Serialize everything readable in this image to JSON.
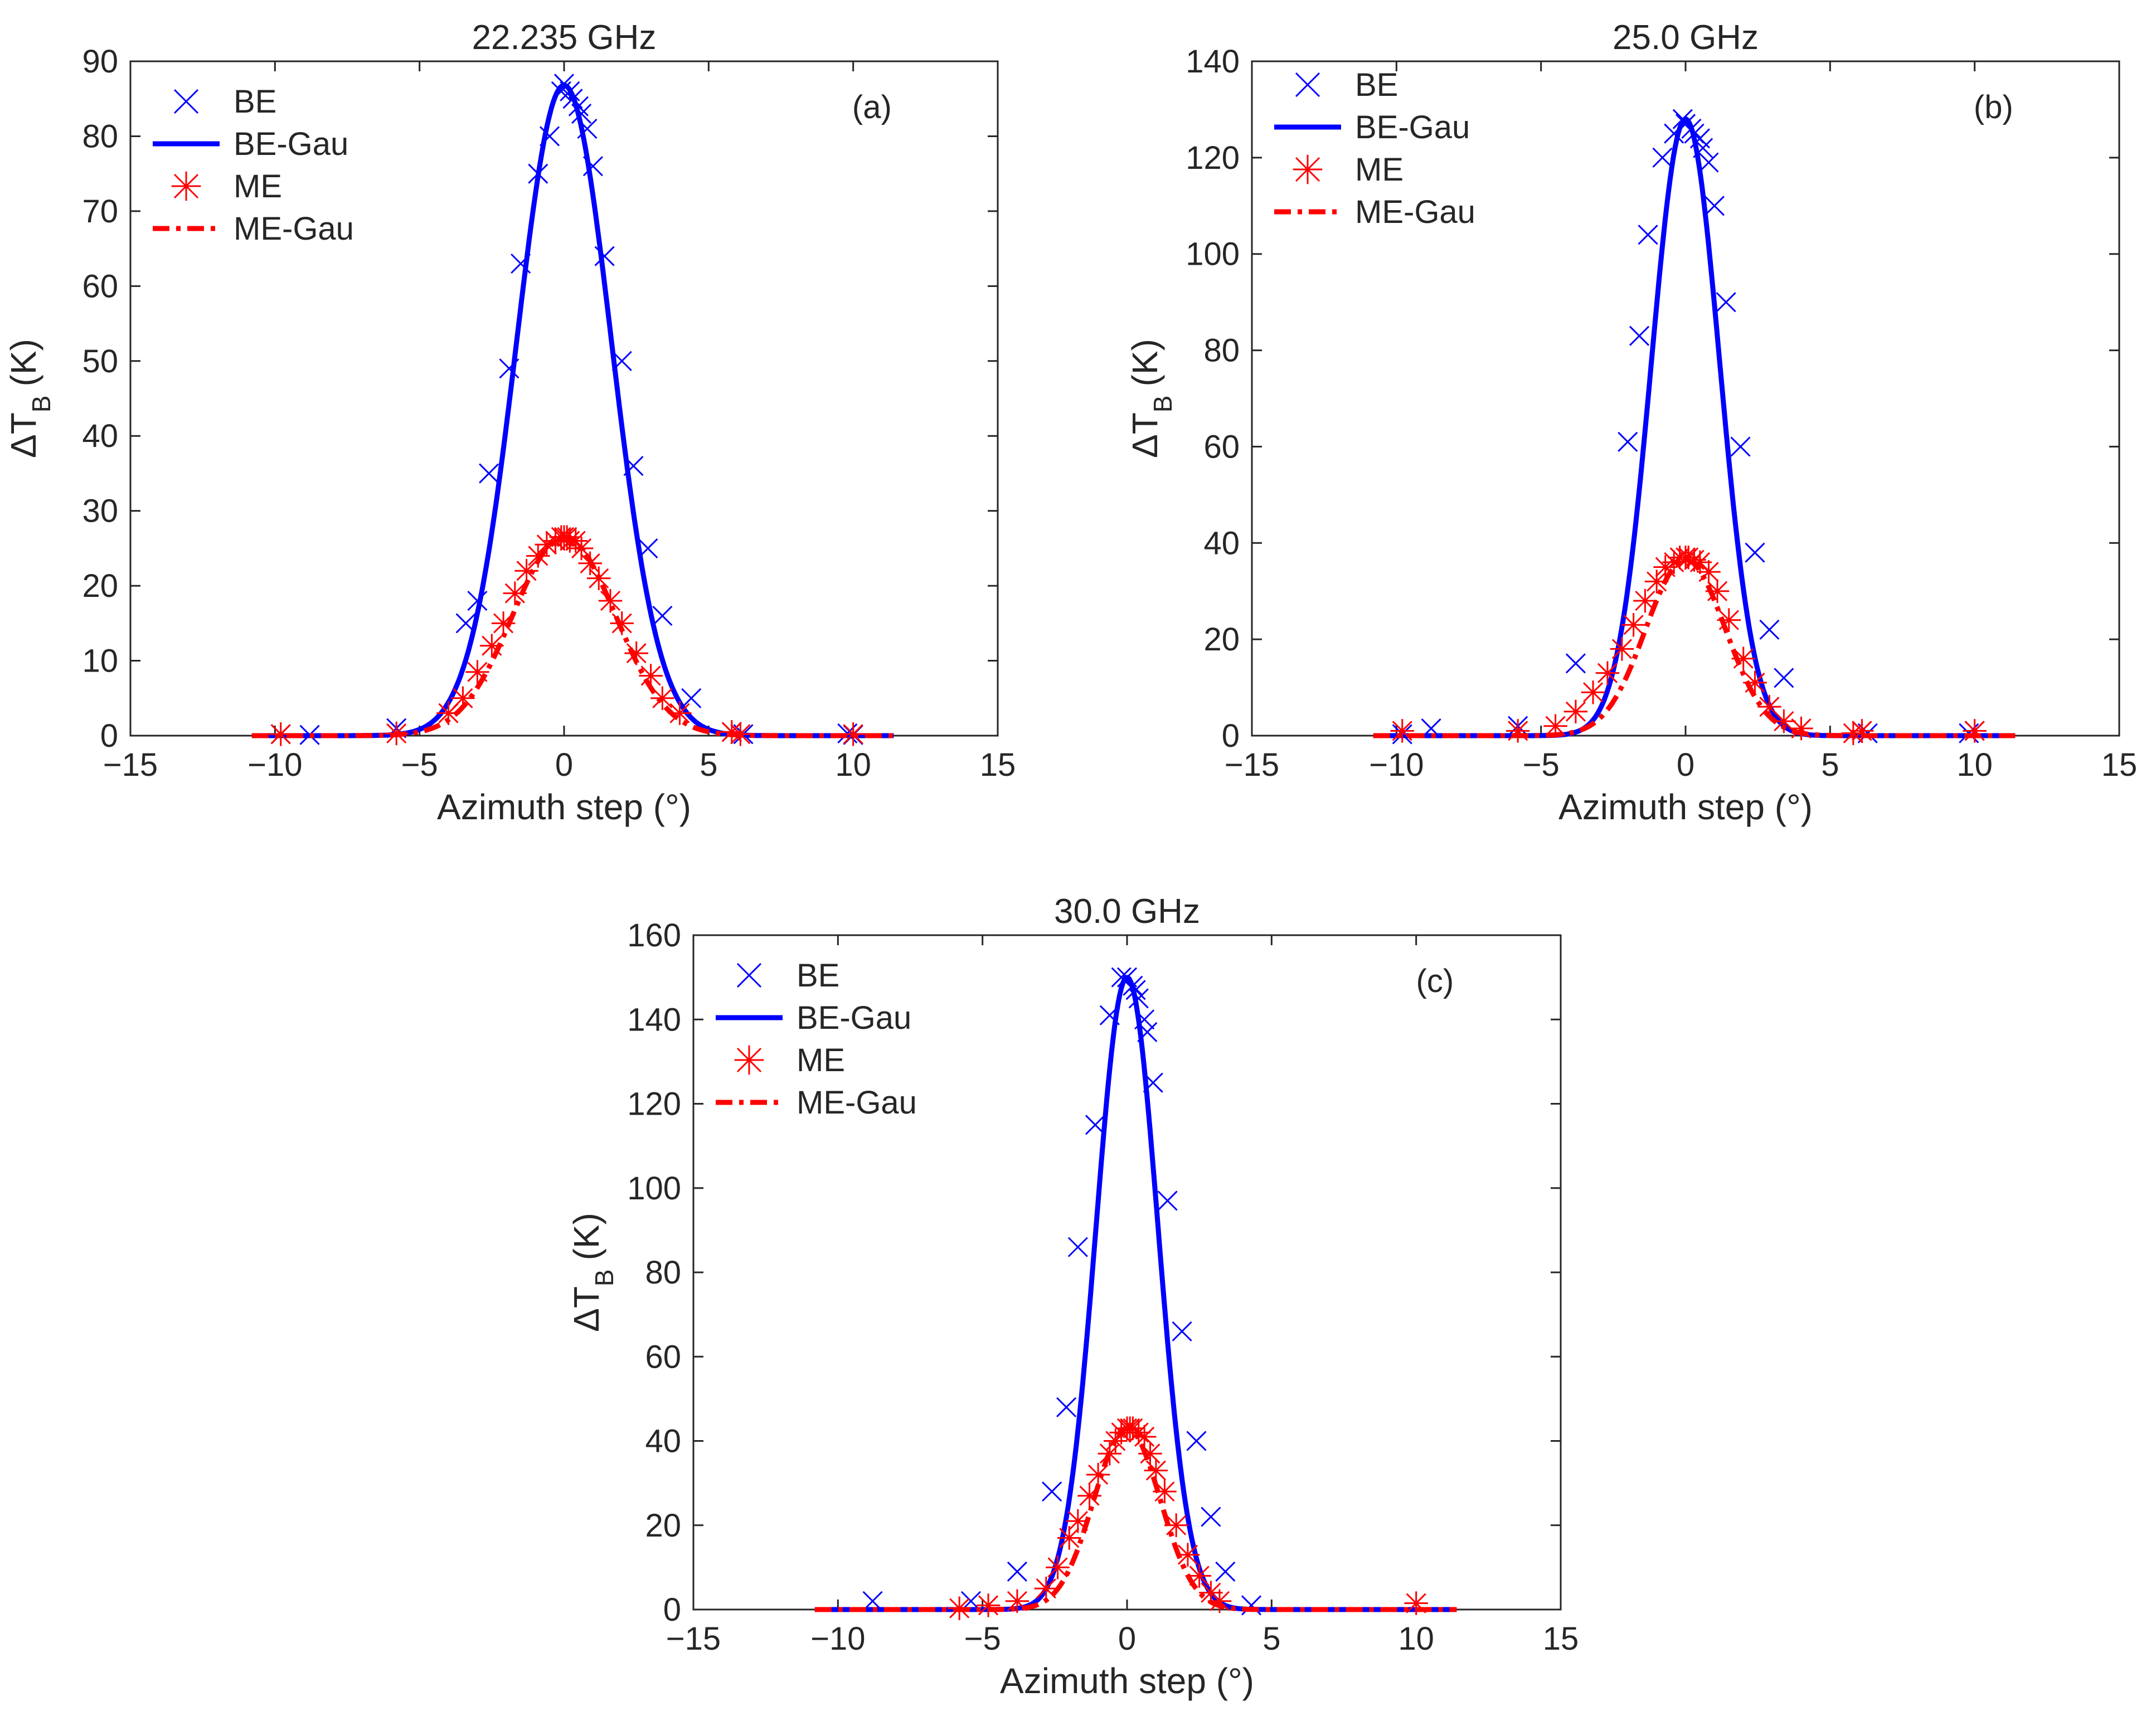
{
  "chart_data": [
    {
      "type": "line",
      "title": "22.235 GHz",
      "panel_label": "(a)",
      "xlabel": "Azimuth step (°)",
      "ylabel_main": "ΔT",
      "ylabel_sub": "B",
      "ylabel_unit": "(K)",
      "xlim": [
        -15,
        15
      ],
      "ylim": [
        0,
        90
      ],
      "xticks": [
        -15,
        -10,
        -5,
        0,
        5,
        10,
        15
      ],
      "yticks": [
        0,
        10,
        20,
        30,
        40,
        50,
        60,
        70,
        80,
        90
      ],
      "xtick_labels": [
        "−15",
        "−10",
        "−5",
        "0",
        "5",
        "10",
        "15"
      ],
      "ytick_labels": [
        "0",
        "10",
        "20",
        "30",
        "40",
        "50",
        "60",
        "70",
        "80",
        "90"
      ],
      "legend_position": "top-left",
      "series": [
        {
          "name": "BE",
          "kind": "marker-x",
          "color": "#0000ff",
          "x": [
            -9.8,
            -8.8,
            -5.8,
            -3.4,
            -3.0,
            -2.6,
            -1.9,
            -1.5,
            -0.9,
            -0.5,
            -0.1,
            0.0,
            0.2,
            0.3,
            0.5,
            0.6,
            0.8,
            1.0,
            1.4,
            2.0,
            2.4,
            2.9,
            3.4,
            4.4,
            5.8,
            6.2,
            9.8,
            10.0
          ],
          "y": [
            0.2,
            0.1,
            1.0,
            15,
            18,
            35,
            49,
            63,
            75,
            80,
            86,
            87,
            86,
            85,
            84,
            83,
            81,
            76,
            64,
            50,
            36,
            25,
            16,
            5,
            0.5,
            0.2,
            0.3,
            0.1
          ]
        },
        {
          "name": "BE-Gau",
          "kind": "line-solid",
          "color": "#0000ff",
          "amp": 86.8,
          "mu": 0.0,
          "sigma": 1.64,
          "range": [
            -10.8,
            11.4
          ]
        },
        {
          "name": "ME",
          "kind": "marker-star",
          "color": "#ff0000",
          "x": [
            -9.8,
            -5.8,
            -4.0,
            -3.5,
            -3.0,
            -2.5,
            -2.1,
            -1.7,
            -1.3,
            -0.9,
            -0.6,
            -0.3,
            -0.1,
            0.0,
            0.1,
            0.2,
            0.4,
            0.6,
            0.9,
            1.2,
            1.6,
            2.0,
            2.5,
            3.0,
            3.4,
            4.0,
            5.8,
            6.1,
            10.0
          ],
          "y": [
            0.2,
            0.3,
            3,
            5,
            8.5,
            12,
            15,
            19,
            22,
            24,
            25.5,
            26,
            26.5,
            26.5,
            26.5,
            26,
            26,
            25,
            23,
            21,
            18,
            15,
            11,
            8,
            5,
            3,
            0.5,
            0.2,
            0.2
          ]
        },
        {
          "name": "ME-Gau",
          "kind": "line-dashdot",
          "color": "#ff0000",
          "amp": 26.5,
          "mu": 0.0,
          "sigma": 1.78,
          "range": [
            -10.8,
            11.4
          ]
        }
      ]
    },
    {
      "type": "line",
      "title": "25.0 GHz",
      "panel_label": "(b)",
      "xlabel": "Azimuth step (°)",
      "ylabel_main": "ΔT",
      "ylabel_sub": "B",
      "ylabel_unit": "(K)",
      "xlim": [
        -15,
        15
      ],
      "ylim": [
        0,
        140
      ],
      "xticks": [
        -15,
        -10,
        -5,
        0,
        5,
        10,
        15
      ],
      "yticks": [
        0,
        20,
        40,
        60,
        80,
        100,
        120,
        140
      ],
      "xtick_labels": [
        "−15",
        "−10",
        "−5",
        "0",
        "5",
        "10",
        "15"
      ],
      "ytick_labels": [
        "0",
        "20",
        "40",
        "60",
        "80",
        "100",
        "120",
        "140"
      ],
      "legend_position": "top-left",
      "series": [
        {
          "name": "BE",
          "kind": "marker-x",
          "color": "#0000ff",
          "x": [
            -9.8,
            -8.8,
            -5.8,
            -3.8,
            -2.0,
            -1.6,
            -1.3,
            -0.8,
            -0.4,
            -0.1,
            0.0,
            0.2,
            0.3,
            0.5,
            0.6,
            0.8,
            1.0,
            1.4,
            1.9,
            2.4,
            2.9,
            3.4,
            6.1,
            6.3,
            9.8,
            10.0
          ],
          "y": [
            0.3,
            1.5,
            2,
            15,
            61,
            83,
            104,
            120,
            125,
            128,
            127,
            126,
            125,
            124,
            122,
            119,
            110,
            90,
            60,
            38,
            22,
            12,
            1,
            0.5,
            0.5,
            1
          ]
        },
        {
          "name": "BE-Gau",
          "kind": "line-solid",
          "color": "#0000ff",
          "amp": 128,
          "mu": 0.0,
          "sigma": 1.18,
          "range": [
            -10.8,
            11.4
          ]
        },
        {
          "name": "ME",
          "kind": "marker-star",
          "color": "#ff0000",
          "x": [
            -9.8,
            -5.8,
            -4.5,
            -3.8,
            -3.2,
            -2.7,
            -2.2,
            -1.8,
            -1.4,
            -1.0,
            -0.7,
            -0.4,
            -0.2,
            0.0,
            0.1,
            0.3,
            0.5,
            0.8,
            1.1,
            1.5,
            2.0,
            2.4,
            2.9,
            3.4,
            4.0,
            5.8,
            6.1,
            10.0
          ],
          "y": [
            1,
            1,
            2,
            5,
            9,
            13,
            18,
            23,
            28,
            32,
            35,
            36,
            37,
            37,
            37,
            36.5,
            36,
            34,
            30,
            24,
            16,
            11,
            6,
            3,
            1.5,
            0.5,
            1,
            1
          ]
        },
        {
          "name": "ME-Gau",
          "kind": "line-dashdot",
          "color": "#ff0000",
          "amp": 36.5,
          "mu": 0.0,
          "sigma": 1.38,
          "range": [
            -10.8,
            11.4
          ]
        }
      ]
    },
    {
      "type": "line",
      "title": "30.0 GHz",
      "panel_label": "(c)",
      "xlabel": "Azimuth step (°)",
      "ylabel_main": "ΔT",
      "ylabel_sub": "B",
      "ylabel_unit": "(K)",
      "xlim": [
        -15,
        15
      ],
      "ylim": [
        0,
        160
      ],
      "xticks": [
        -15,
        -10,
        -5,
        0,
        5,
        10,
        15
      ],
      "yticks": [
        0,
        20,
        40,
        60,
        80,
        100,
        120,
        140,
        160
      ],
      "xtick_labels": [
        "−15",
        "−10",
        "−5",
        "0",
        "5",
        "10",
        "15"
      ],
      "ytick_labels": [
        "0",
        "20",
        "40",
        "60",
        "80",
        "100",
        "120",
        "140",
        "160"
      ],
      "legend_position": "top-left",
      "series": [
        {
          "name": "BE",
          "kind": "marker-x",
          "color": "#0000ff",
          "x": [
            -8.8,
            -5.4,
            -3.8,
            -2.6,
            -2.1,
            -1.7,
            -1.1,
            -0.6,
            -0.2,
            0.0,
            0.2,
            0.3,
            0.4,
            0.6,
            0.7,
            0.9,
            1.4,
            1.9,
            2.4,
            2.9,
            3.4,
            4.3
          ],
          "y": [
            2,
            2,
            9,
            28,
            48,
            86,
            115,
            141,
            150,
            150,
            148,
            147,
            145,
            140,
            137,
            125,
            97,
            66,
            40,
            22,
            9,
            1
          ]
        },
        {
          "name": "BE-Gau",
          "kind": "line-solid",
          "color": "#0000ff",
          "amp": 150,
          "mu": 0.0,
          "sigma": 1.07,
          "range": [
            -10.8,
            11.4
          ]
        },
        {
          "name": "ME",
          "kind": "marker-star",
          "color": "#ff0000",
          "x": [
            -5.8,
            -4.8,
            -3.8,
            -2.8,
            -2.4,
            -2.0,
            -1.7,
            -1.3,
            -1.0,
            -0.6,
            -0.4,
            -0.2,
            0.0,
            0.1,
            0.2,
            0.4,
            0.6,
            0.8,
            1.0,
            1.3,
            1.7,
            2.1,
            2.5,
            2.9,
            3.2,
            10.0
          ],
          "y": [
            0.3,
            1,
            2,
            5,
            10,
            17,
            21,
            27,
            32,
            37,
            40,
            42,
            43,
            43,
            43,
            42,
            41,
            37,
            33,
            28,
            20,
            13,
            8,
            4,
            2,
            1.5
          ]
        },
        {
          "name": "ME-Gau",
          "kind": "line-dashdot",
          "color": "#ff0000",
          "amp": 43,
          "mu": 0.0,
          "sigma": 1.15,
          "range": [
            -10.8,
            11.4
          ]
        }
      ]
    }
  ]
}
